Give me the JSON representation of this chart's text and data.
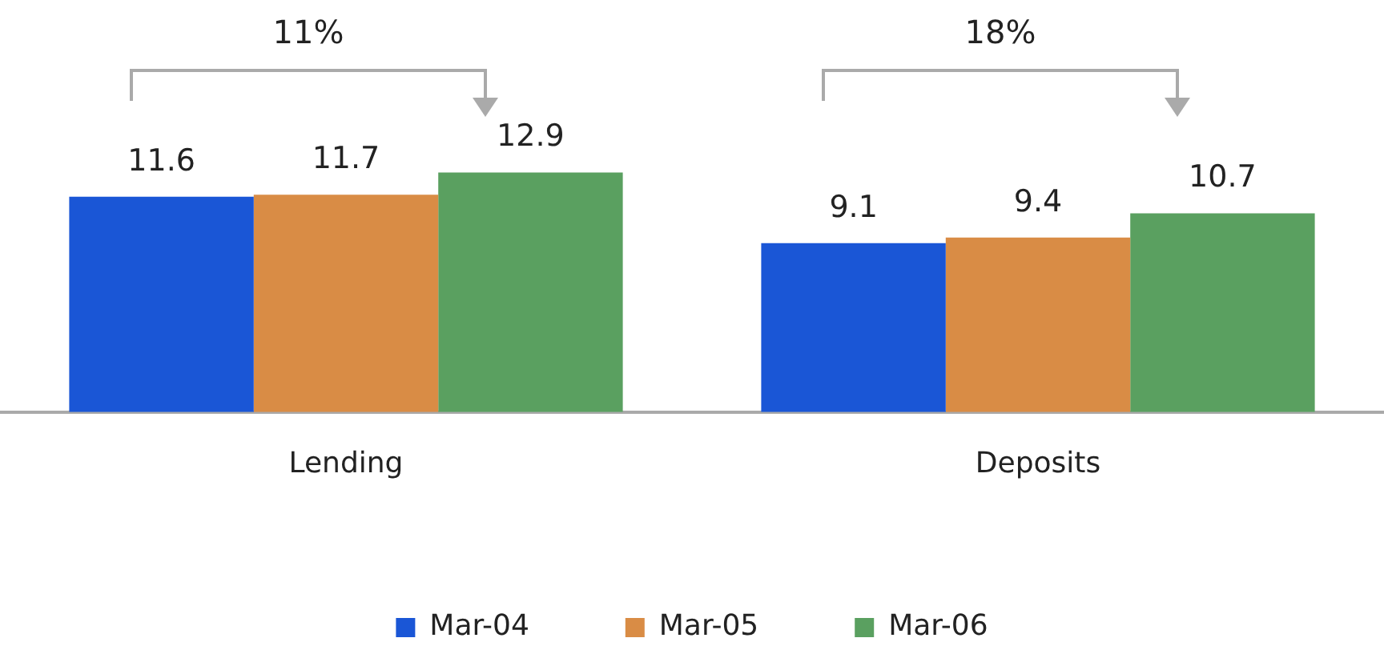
{
  "chart_data": {
    "type": "bar",
    "categories": [
      "Lending",
      "Deposits"
    ],
    "series": [
      {
        "name": "Mar-04",
        "color": "#1a56d6",
        "values": [
          11.6,
          9.1
        ]
      },
      {
        "name": "Mar-05",
        "color": "#d98c45",
        "values": [
          11.7,
          9.4
        ]
      },
      {
        "name": "Mar-06",
        "color": "#5aa060",
        "values": [
          12.9,
          10.7
        ]
      }
    ],
    "data_labels": true,
    "legend": "bottom",
    "grid": false,
    "annotations": [
      "11%",
      "18%"
    ]
  }
}
